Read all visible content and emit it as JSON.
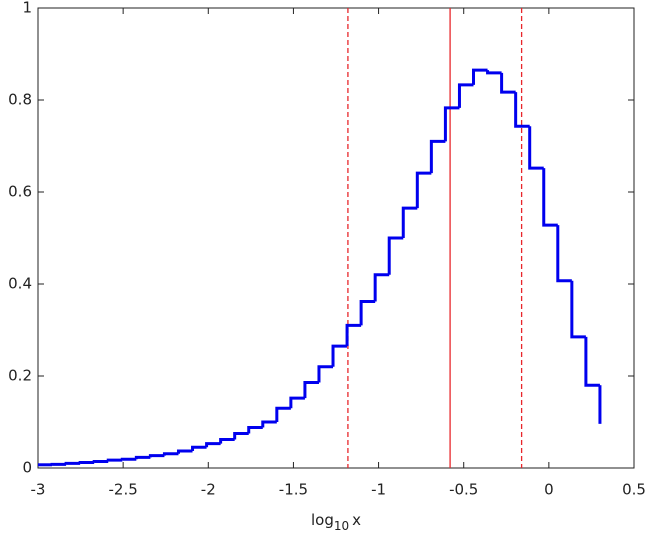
{
  "chart_data": {
    "type": "histogram",
    "xlabel": [
      "log",
      "10",
      "x"
    ],
    "bins": [
      -3,
      -2.9175,
      -2.835,
      -2.7525,
      -2.67,
      -2.5875,
      -2.505,
      -2.4225,
      -2.34,
      -2.2575,
      -2.175,
      -2.0925,
      -2.01,
      -1.9275,
      -1.845,
      -1.7625,
      -1.68,
      -1.5975,
      -1.515,
      -1.4325,
      -1.35,
      -1.2675,
      -1.185,
      -1.1025,
      -1.02,
      -0.9375,
      -0.855,
      -0.7725,
      -0.69,
      -0.6075,
      -0.525,
      -0.4425,
      -0.36,
      -0.2775,
      -0.195,
      -0.1125,
      -0.03,
      0.0525,
      0.135,
      0.2175,
      0.3
    ],
    "values": [
      0.007,
      0.008,
      0.01,
      0.012,
      0.014,
      0.017,
      0.019,
      0.023,
      0.027,
      0.031,
      0.037,
      0.045,
      0.053,
      0.062,
      0.075,
      0.088,
      0.1,
      0.13,
      0.152,
      0.186,
      0.22,
      0.265,
      0.31,
      0.362,
      0.42,
      0.5,
      0.565,
      0.641,
      0.71,
      0.783,
      0.833,
      0.865,
      0.859,
      0.817,
      0.743,
      0.652,
      0.528,
      0.407,
      0.285,
      0.18,
      0.096
    ],
    "color": "#0000ee",
    "vlines": [
      {
        "value": -1.18,
        "style": "dashed"
      },
      {
        "value": -0.58,
        "style": "solid"
      },
      {
        "value": -0.16,
        "style": "dashed"
      }
    ],
    "vline_color": "#e8262b",
    "xlim": [
      -3,
      0.5
    ],
    "xticks": [
      -3,
      -2.5,
      -2,
      -1.5,
      -1,
      -0.5,
      0,
      0.5
    ],
    "ylim": [
      0,
      1
    ],
    "yticks": [
      0,
      0.2,
      0.4,
      0.6,
      0.8,
      1
    ]
  }
}
